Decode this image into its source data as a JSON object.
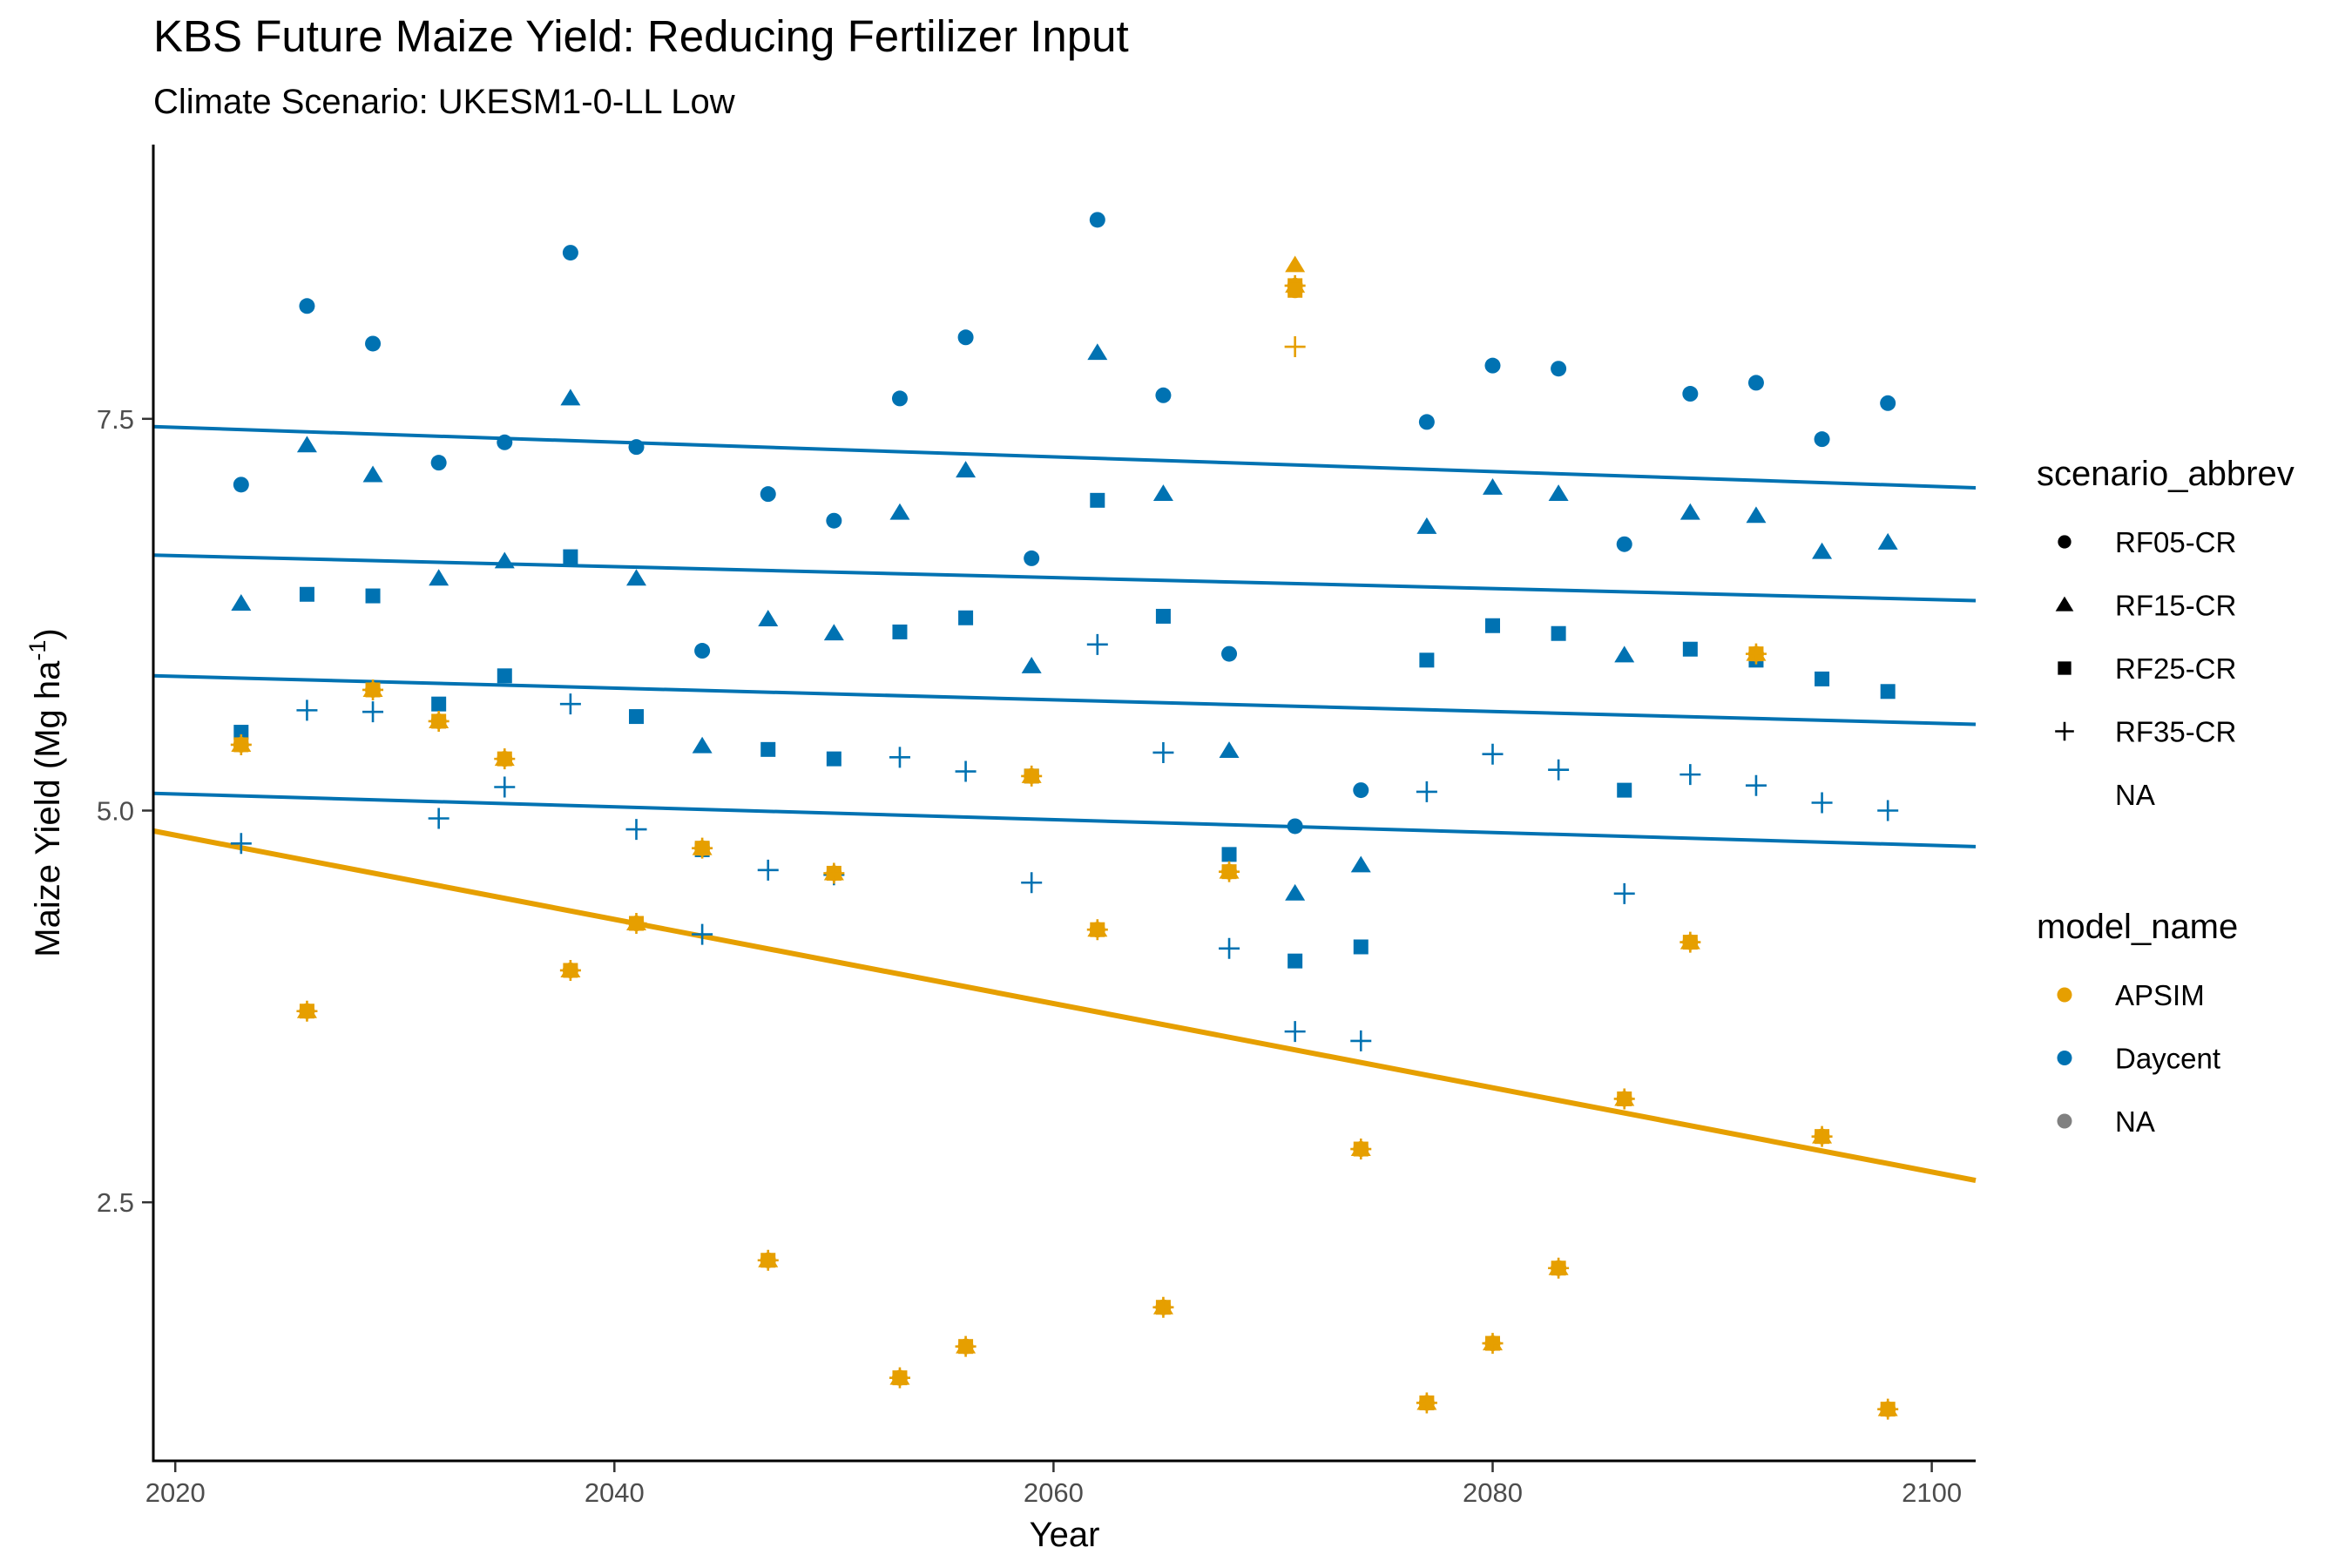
{
  "chart_data": {
    "type": "scatter",
    "title": "KBS Future Maize Yield: Reducing Fertilizer Input",
    "subtitle": "Climate Scenario: UKESM1-0-LL Low",
    "xlabel": "Year",
    "ylabel_main": "Maize Yield (Mg ha",
    "ylabel_sup": "-1",
    "ylabel_close": ")",
    "xlim": [
      2019,
      2102
    ],
    "ylim": [
      0.85,
      9.25
    ],
    "x_ticks": [
      2020,
      2040,
      2060,
      2080,
      2100
    ],
    "x_tick_labels": [
      "2020",
      "2040",
      "2060",
      "2080",
      "2100"
    ],
    "y_ticks": [
      2.5,
      5.0,
      7.5
    ],
    "y_tick_labels": [
      "2.5",
      "5.0",
      "7.5"
    ],
    "grid": false,
    "colors": {
      "APSIM": "#E69F00",
      "Daycent": "#0072B2",
      "NA": "#808080"
    },
    "legend_scenario": {
      "title": "scenario_abbrev",
      "items": [
        {
          "shape": "circle",
          "label": "RF05-CR"
        },
        {
          "shape": "triangle",
          "label": "RF15-CR"
        },
        {
          "shape": "square",
          "label": "RF25-CR"
        },
        {
          "shape": "plus",
          "label": "RF35-CR"
        },
        {
          "shape": "none",
          "label": "NA"
        }
      ]
    },
    "legend_model": {
      "title": "model_name",
      "items": [
        {
          "color": "#E69F00",
          "label": "APSIM"
        },
        {
          "color": "#0072B2",
          "label": "Daycent"
        },
        {
          "color": "#808080",
          "label": "NA"
        }
      ]
    },
    "years": [
      2023,
      2026,
      2029,
      2032,
      2035,
      2038,
      2041,
      2044,
      2047,
      2050,
      2053,
      2056,
      2059,
      2062,
      2065,
      2068,
      2071,
      2074,
      2077,
      2080,
      2083,
      2086,
      2089,
      2092,
      2095,
      2098
    ],
    "series": [
      {
        "model": "Daycent",
        "scenario": "RF05-CR",
        "shape": "circle",
        "y": [
          7.08,
          8.22,
          7.98,
          7.22,
          7.35,
          8.56,
          7.32,
          6.02,
          7.02,
          6.85,
          7.63,
          8.02,
          6.61,
          8.77,
          7.65,
          6.0,
          4.9,
          5.13,
          7.48,
          7.84,
          7.82,
          6.7,
          7.66,
          7.73,
          7.37,
          7.6
        ]
      },
      {
        "model": "Daycent",
        "scenario": "RF15-CR",
        "shape": "triangle",
        "y": [
          6.32,
          7.33,
          7.14,
          6.48,
          6.59,
          7.63,
          6.48,
          5.41,
          6.22,
          6.13,
          6.9,
          7.17,
          5.92,
          7.92,
          7.02,
          5.38,
          4.47,
          4.65,
          6.81,
          7.06,
          7.02,
          5.99,
          6.9,
          6.88,
          6.65,
          6.71
        ]
      },
      {
        "model": "Daycent",
        "scenario": "RF25-CR",
        "shape": "square",
        "y": [
          5.5,
          6.38,
          6.37,
          5.68,
          5.86,
          6.62,
          5.6,
          4.75,
          5.39,
          5.33,
          6.14,
          6.23,
          5.22,
          6.98,
          6.24,
          4.72,
          4.04,
          4.13,
          5.96,
          6.18,
          6.13,
          5.13,
          6.03,
          5.96,
          5.84,
          5.76
        ]
      },
      {
        "model": "Daycent",
        "scenario": "RF35-CR",
        "shape": "plus",
        "y": [
          4.79,
          5.64,
          5.63,
          4.95,
          5.15,
          5.68,
          4.88,
          4.21,
          4.62,
          4.59,
          5.34,
          5.25,
          4.54,
          6.06,
          5.37,
          4.12,
          3.59,
          3.53,
          5.12,
          5.36,
          5.26,
          4.47,
          5.23,
          5.16,
          5.05,
          5.0
        ]
      },
      {
        "model": "APSIM",
        "scenario": "all",
        "shape": "overlap",
        "y": [
          5.42,
          3.72,
          5.77,
          5.57,
          5.33,
          3.98,
          4.28,
          4.76,
          2.13,
          4.6,
          1.38,
          1.58,
          5.22,
          4.24,
          1.83,
          4.61,
          8.35,
          2.84,
          1.22,
          1.6,
          2.08,
          3.16,
          4.16,
          6.0,
          2.92,
          1.18
        ]
      },
      {
        "model": "APSIM",
        "scenario": "RF05-CR",
        "shape": "circle",
        "x": [
          2071
        ],
        "y": [
          8.32
        ]
      },
      {
        "model": "APSIM",
        "scenario": "RF15-CR",
        "shape": "triangle",
        "x": [
          2071
        ],
        "y": [
          8.48
        ]
      },
      {
        "model": "APSIM",
        "scenario": "RF25-CR",
        "shape": "square",
        "x": [
          2071
        ],
        "y": [
          8.32
        ]
      },
      {
        "model": "APSIM",
        "scenario": "RF35-CR",
        "shape": "plus",
        "x": [
          2071
        ],
        "y": [
          7.96
        ]
      }
    ],
    "trendlines": [
      {
        "model": "Daycent",
        "scenario": "RF05-CR",
        "x": [
          2019,
          2102
        ],
        "y": [
          7.45,
          7.06
        ]
      },
      {
        "model": "Daycent",
        "scenario": "RF15-CR",
        "x": [
          2019,
          2102
        ],
        "y": [
          6.63,
          6.34
        ]
      },
      {
        "model": "Daycent",
        "scenario": "RF25-CR",
        "x": [
          2019,
          2102
        ],
        "y": [
          5.86,
          5.55
        ]
      },
      {
        "model": "Daycent",
        "scenario": "RF35-CR",
        "x": [
          2019,
          2102
        ],
        "y": [
          5.11,
          4.77
        ]
      },
      {
        "model": "APSIM",
        "scenario": "all",
        "x": [
          2019,
          2102
        ],
        "y": [
          4.87,
          2.64
        ]
      }
    ]
  }
}
